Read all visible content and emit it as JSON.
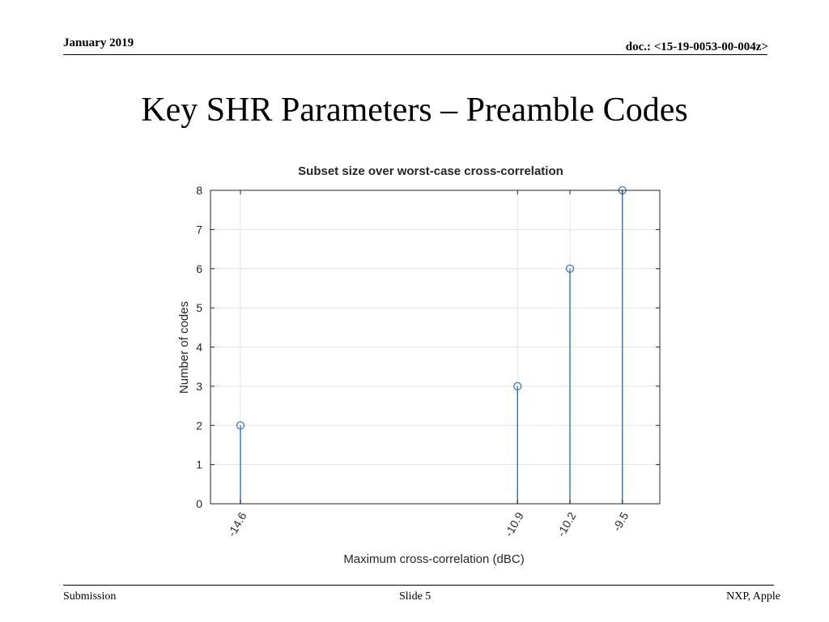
{
  "header": {
    "date": "January 2019",
    "doc": "doc.: <15-19-0053-00-004z>"
  },
  "slide": {
    "title": "Key SHR Parameters – Preamble Codes"
  },
  "footer": {
    "left": "Submission",
    "center": "Slide 5",
    "right": "NXP, Apple"
  },
  "colors": {
    "stem": "#3a7bb8",
    "grid": "#e3e3e3",
    "axis": "#262626"
  },
  "chart_data": {
    "type": "scatter",
    "style": "stem",
    "title": "Subset size over worst-case cross-correlation",
    "xlabel": "Maximum cross-correlation (dBC)",
    "ylabel": "Number of codes",
    "x": [
      -14.6,
      -10.9,
      -10.2,
      -9.5
    ],
    "y": [
      2,
      3,
      6,
      8
    ],
    "xticks": [
      -14.6,
      -10.9,
      -10.2,
      -9.5
    ],
    "xtick_labels": [
      "-14.6",
      "-10.9",
      "-10.2",
      "-9.5"
    ],
    "yticks": [
      0,
      1,
      2,
      3,
      4,
      5,
      6,
      7,
      8
    ],
    "xlim": [
      -15,
      -9
    ],
    "ylim": [
      0,
      8
    ],
    "grid": true,
    "marker": "circle"
  }
}
